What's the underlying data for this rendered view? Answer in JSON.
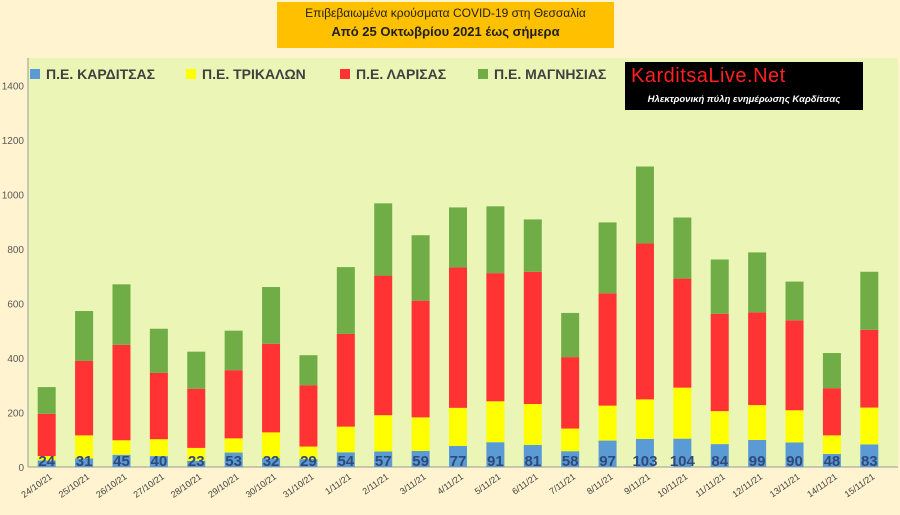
{
  "title": {
    "line1": "Επιβεβαιωμένα κρούσματα COVID-19 στη Θεσσαλία",
    "line2": "Από 25 Οκτωβρίου 2021 έως σήμερα"
  },
  "brand": {
    "name": "KarditsaLive.Net",
    "tagline": "Ηλεκτρονική πύλη ενημέρωσης Καρδίτσας"
  },
  "colors": {
    "background": "#fff4cf",
    "plot_background": "#ebf5b5",
    "karditsa": "#5b9bd5",
    "trikala": "#ffff00",
    "larisa": "#ff3333",
    "magnisia": "#70ad47"
  },
  "chart_data": {
    "type": "bar",
    "stacked": true,
    "categories": [
      "24/10/21",
      "25/10/21",
      "26/10/21",
      "27/10/21",
      "28/10/21",
      "29/10/21",
      "30/10/21",
      "31/10/21",
      "1/11/21",
      "2/11/21",
      "3/11/21",
      "4/11/21",
      "5/11/21",
      "6/11/21",
      "7/11/21",
      "8/11/21",
      "9/11/21",
      "10/11/21",
      "11/11/21",
      "12/11/21",
      "13/11/21",
      "14/11/21",
      "15/11/21"
    ],
    "series": [
      {
        "name": "Π.Ε. ΚΑΡΔΙΤΣΑΣ",
        "color": "#5b9bd5",
        "values": [
          24,
          31,
          45,
          40,
          23,
          53,
          32,
          29,
          54,
          57,
          59,
          77,
          91,
          81,
          58,
          97,
          103,
          104,
          84,
          99,
          90,
          48,
          83
        ]
      },
      {
        "name": "Π.Ε. ΤΡΙΚΑΛΩΝ",
        "color": "#ffff00",
        "values": [
          16,
          85,
          53,
          62,
          47,
          52,
          95,
          46,
          94,
          133,
          123,
          140,
          150,
          150,
          83,
          128,
          145,
          187,
          121,
          128,
          118,
          68,
          135
        ]
      },
      {
        "name": "Π.Ε. ΛΑΡΙΣΑΣ",
        "color": "#ff3333",
        "values": [
          155,
          273,
          350,
          243,
          217,
          250,
          325,
          225,
          340,
          512,
          428,
          515,
          470,
          485,
          262,
          412,
          572,
          400,
          357,
          340,
          330,
          173,
          285
        ]
      },
      {
        "name": "Π.Ε. ΜΑΓΝΗΣΙΑΣ",
        "color": "#70ad47",
        "values": [
          98,
          183,
          222,
          162,
          136,
          145,
          208,
          110,
          245,
          265,
          240,
          220,
          245,
          192,
          162,
          260,
          282,
          224,
          199,
          220,
          142,
          129,
          213
        ]
      }
    ],
    "data_labels": [
      "24",
      "31",
      "45",
      "40",
      "23",
      "53",
      "32",
      "29",
      "54",
      "57",
      "59",
      "77",
      "91",
      "81",
      "58",
      "97",
      "103",
      "104",
      "84",
      "99",
      "90",
      "48",
      "83"
    ],
    "ylim": [
      0,
      1500
    ],
    "yticks": [
      "0",
      "200",
      "400",
      "600",
      "800",
      "1000",
      "1200",
      "1400"
    ],
    "grid": false,
    "legend_position": "top-left"
  }
}
